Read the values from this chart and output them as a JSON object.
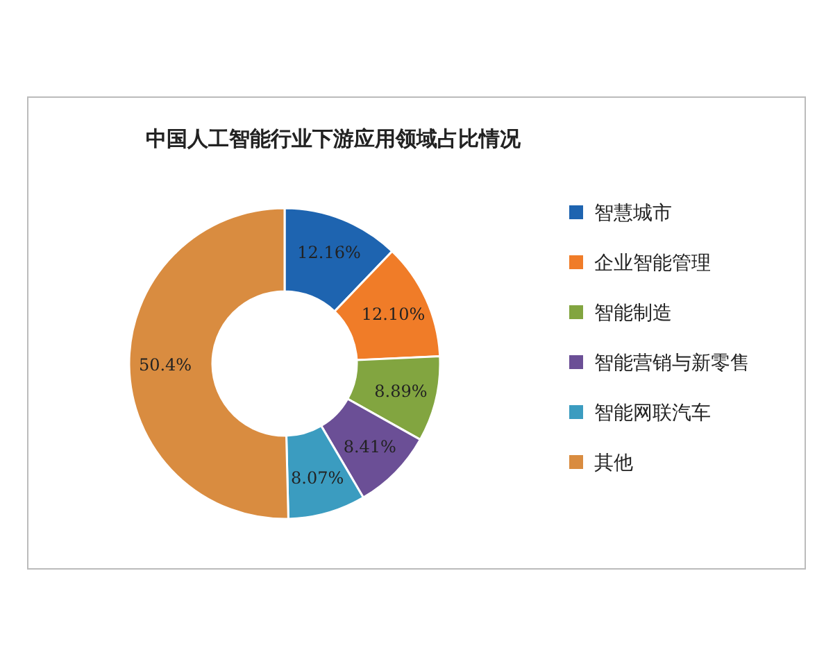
{
  "chart_data": {
    "type": "donut",
    "title": "中国人工智能行业下游应用领域占比情况",
    "categories": [
      "智慧城市",
      "企业智能管理",
      "智能制造",
      "智能营销与新零售",
      "智能网联汽车",
      "其他"
    ],
    "values": [
      12.16,
      12.1,
      8.89,
      8.41,
      8.07,
      50.4
    ],
    "value_labels": [
      "12.16%",
      "12.10%",
      "8.89%",
      "8.41%",
      "8.07%",
      "50.4%"
    ],
    "colors": [
      "#1e64b0",
      "#f07c28",
      "#82a540",
      "#6b4f96",
      "#3b9cc0",
      "#d98c40"
    ],
    "legend": "right"
  }
}
